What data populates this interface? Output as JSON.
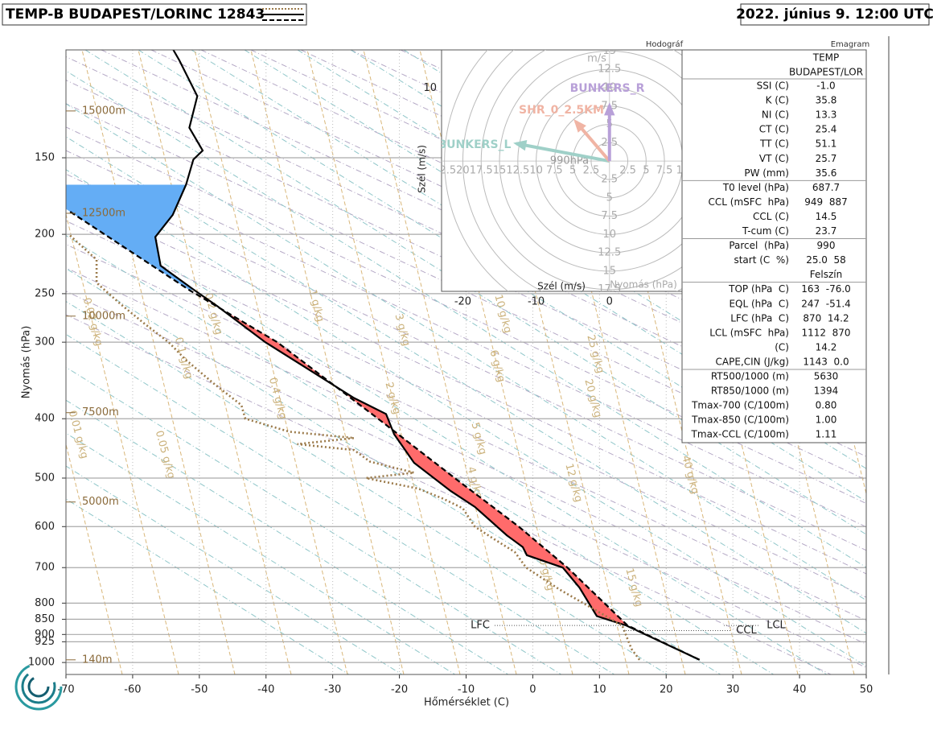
{
  "header": {
    "title": "TEMP-B BUDAPEST/LORINC 12843",
    "date": "2022. június 9. 12:00 UTC"
  },
  "chart_data": {
    "type": "emagram",
    "xlabel": "Hőmérséklet (C)",
    "ylabel": "Nyomás (hPa)",
    "xlim": [
      -70,
      50
    ],
    "xticks": [
      -70,
      -60,
      -50,
      -40,
      -30,
      -20,
      -10,
      0,
      10,
      20,
      30,
      40,
      50
    ],
    "ylim": [
      1046,
      100
    ],
    "ylog": true,
    "yticks": [
      150,
      200,
      250,
      300,
      400,
      500,
      600,
      700,
      800,
      850,
      900,
      925,
      1000
    ],
    "grid": true,
    "series": [
      {
        "color": "#000000",
        "dash": "solid",
        "p": [
          990,
          870,
          840,
          755,
          700,
          668,
          648,
          620,
          557,
          525,
          472,
          424,
          393,
          370,
          300,
          262,
          246,
          225,
          202,
          186,
          166,
          151,
          146,
          134,
          119,
          104,
          100
        ],
        "t": [
          25.0,
          14.0,
          9.6,
          7.0,
          4.5,
          -0.9,
          -1.5,
          -3.9,
          -8.7,
          -12.3,
          -17.8,
          -20.8,
          -22.0,
          -26.8,
          -40.1,
          -47.3,
          -50.9,
          -55.8,
          -56.6,
          -54.0,
          -52.0,
          -50.9,
          -49.5,
          -51.5,
          -50.3,
          -53.0,
          -53.9
        ]
      },
      {
        "color": "#000000",
        "dash": "dashed",
        "p": [
          990,
          870,
          700,
          600,
          500,
          400,
          300,
          247,
          183
        ],
        "t": [
          25.0,
          14.2,
          5.2,
          -2.1,
          -11.7,
          -23.2,
          -38.3,
          -51.4,
          -69.6
        ]
      },
      {
        "color": "#9b7a4a",
        "dash": "dotted",
        "p": [
          990,
          950,
          870,
          760,
          700,
          660,
          630,
          600,
          560,
          540,
          520,
          500,
          490,
          470,
          450,
          440,
          430,
          420,
          400,
          380,
          350,
          320,
          300,
          280,
          260,
          240,
          220,
          200
        ],
        "t": [
          16.0,
          14.8,
          13.4,
          4.0,
          -1.0,
          -2.7,
          -5.7,
          -8.7,
          -10.5,
          -13.5,
          -17.2,
          -25.0,
          -17.8,
          -24.4,
          -26.8,
          -35.3,
          -26.8,
          -36.5,
          -43.1,
          -43.7,
          -47.9,
          -52.1,
          -54.6,
          -58.2,
          -61.8,
          -65.4,
          -65.4,
          -69.6
        ]
      }
    ],
    "heights": [
      {
        "label": "15000m",
        "p": 125.8
      },
      {
        "label": "12500m",
        "p": 184.8
      },
      {
        "label": "10000m",
        "p": 272
      },
      {
        "label": "7500m",
        "p": 391
      },
      {
        "label": "5000m",
        "p": 547
      },
      {
        "label": "140m",
        "p": 990
      }
    ],
    "levels": [
      {
        "label": "LFC",
        "p": 870
      },
      {
        "label": "LCL",
        "p": 870
      },
      {
        "label": "CCL",
        "p": 887
      }
    ],
    "mixing_labels": [
      "0.02 g/kg",
      "0.01 g/kg",
      "0.05 g/kg",
      "0.1 g/kg",
      "0.2 g/kg",
      "0.4 g/kg",
      "1 g/kg",
      "2 g/kg",
      "3 g/kg",
      "4 g/kg",
      "5 g/kg",
      "6 g/kg",
      "10 g/kg",
      "10 g/kg",
      "12 g/kg",
      "15 g/kg",
      "20 g/kg",
      "25 g/kg",
      "40 g/kg"
    ]
  },
  "hodograph": {
    "title": "Hodográf",
    "xlabel": "Szél (m/s)",
    "ylabel": "Szél (m/s)",
    "unit": "m/s",
    "plabel": "Nyomás (hPa)",
    "base": "990hPa",
    "xlim": [
      -22.9,
      9.9
    ],
    "ylim": [
      -17.8,
      15.2
    ],
    "xticks": [
      -20,
      -10,
      0
    ],
    "yticks": [
      10
    ],
    "rings": [
      2.5,
      5,
      7.5,
      10,
      12.5,
      15,
      17.5,
      20,
      22.5
    ],
    "vectors": [
      {
        "name": "BUNKERS_L",
        "color": "#9fd0c8",
        "u": -12.7,
        "v": 2.4
      },
      {
        "name": "SHR_0_2.5KM",
        "color": "#f0b4a4",
        "u": -4.6,
        "v": 5.4
      },
      {
        "name": "BUNKERS_R",
        "color": "#b8a0d8",
        "u": 0,
        "v": 7.6
      }
    ]
  },
  "stats": {
    "title": "Emagram",
    "header": [
      "TEMP",
      "BUDAPEST/LOR"
    ],
    "rows": [
      [
        "SSI (C)",
        "-1.0"
      ],
      [
        "K (C)",
        "35.8"
      ],
      [
        "NI (C)",
        "13.3"
      ],
      [
        "CT (C)",
        "25.4"
      ],
      [
        "TT (C)",
        "51.1"
      ],
      [
        "VT (C)",
        "25.7"
      ],
      [
        "PW (mm)",
        "35.6"
      ],
      [
        "T0 level (hPa)",
        "687.7"
      ],
      [
        "CCL (mSFC  hPa)",
        "949  887"
      ],
      [
        "CCL (C)",
        "14.5"
      ],
      [
        "T-cum (C)",
        "23.7"
      ],
      [
        "Parcel  (hPa)",
        "990"
      ],
      [
        "start (C  %)",
        "25.0  58"
      ],
      [
        "Felszín"
      ],
      [
        "TOP (hPa  C)",
        "163  -76.0"
      ],
      [
        "EQL (hPa  C)",
        "247  -51.4"
      ],
      [
        "LFC (hPa  C)",
        "870  14.2"
      ],
      [
        "LCL (mSFC  hPa)",
        "1112  870"
      ],
      [
        "(C)",
        "14.2"
      ],
      [
        "CAPE,CIN (J/kg)",
        "1143  0.0"
      ],
      [
        "RT500/1000 (m)",
        "5630"
      ],
      [
        "RT850/1000 (m)",
        "1394"
      ],
      [
        "Tmax-700 (C/100m)",
        "0.80"
      ],
      [
        "Tmax-850 (C/100m)",
        "1.00"
      ],
      [
        "Tmax-CCL (C/100m)",
        "1.11"
      ]
    ],
    "separators_after": [
      6,
      10,
      13,
      19
    ]
  }
}
